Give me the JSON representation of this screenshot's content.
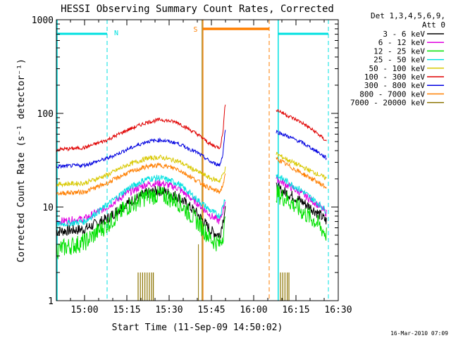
{
  "chart_data": {
    "type": "line",
    "title": "HESSI Observing Summary Count Rates, Corrected",
    "xlabel": "Start Time (11-Sep-09 14:50:02)",
    "ylabel": "Corrected Count Rate (s⁻¹ detector⁻¹)",
    "yscale": "log",
    "ylim": [
      1,
      1000
    ],
    "xlim": [
      "14:50",
      "16:30"
    ],
    "x_ticks": [
      "15:00",
      "15:15",
      "15:30",
      "15:45",
      "16:00",
      "16:15",
      "16:30"
    ],
    "y_ticks": [
      "1",
      "10",
      "100",
      "1000"
    ],
    "grid": false,
    "legend_position": "right",
    "legend_header": [
      "Det 1,3,4,5,6,9,",
      "Att 0"
    ],
    "footer_date": "16-Mar-2010 07:09",
    "x_units": "minutes after 14:50",
    "series": [
      {
        "name": "3 - 6 keV",
        "color": "#000000",
        "points": [
          [
            0,
            5.5
          ],
          [
            10,
            5.8
          ],
          [
            18,
            7.5
          ],
          [
            25,
            11
          ],
          [
            32,
            14
          ],
          [
            37,
            15
          ],
          [
            43,
            13
          ],
          [
            50,
            8.5
          ],
          [
            55,
            5.5
          ],
          [
            58,
            5
          ],
          [
            59,
            7
          ],
          [
            60,
            10
          ]
        ],
        "points2": [
          [
            78,
            16
          ],
          [
            82,
            14
          ],
          [
            87,
            11.5
          ],
          [
            92,
            9
          ],
          [
            96,
            7
          ]
        ]
      },
      {
        "name": "6 - 12 keV",
        "color": "#e000e0",
        "points": [
          [
            0,
            7
          ],
          [
            10,
            7.5
          ],
          [
            18,
            10
          ],
          [
            25,
            14
          ],
          [
            32,
            17.5
          ],
          [
            37,
            18
          ],
          [
            43,
            16
          ],
          [
            50,
            11
          ],
          [
            55,
            8
          ],
          [
            58,
            7
          ],
          [
            59,
            9
          ],
          [
            60,
            12
          ]
        ],
        "points2": [
          [
            78,
            20
          ],
          [
            82,
            17
          ],
          [
            87,
            14
          ],
          [
            92,
            11
          ],
          [
            96,
            8.5
          ]
        ]
      },
      {
        "name": "12 - 25 keV",
        "color": "#00e000",
        "points": [
          [
            0,
            3.5
          ],
          [
            10,
            4.2
          ],
          [
            18,
            6.5
          ],
          [
            25,
            10
          ],
          [
            32,
            13
          ],
          [
            37,
            13.5
          ],
          [
            43,
            11.5
          ],
          [
            50,
            7
          ],
          [
            55,
            4.5
          ],
          [
            58,
            4
          ],
          [
            59,
            5
          ],
          [
            60,
            7
          ]
        ],
        "points2": [
          [
            78,
            14
          ],
          [
            82,
            12
          ],
          [
            87,
            9
          ],
          [
            92,
            7
          ],
          [
            96,
            5
          ]
        ]
      },
      {
        "name": "25 - 50 keV",
        "color": "#00e0e0",
        "points": [
          [
            0,
            6.5
          ],
          [
            10,
            7
          ],
          [
            18,
            10.5
          ],
          [
            25,
            15.5
          ],
          [
            32,
            20
          ],
          [
            37,
            20.5
          ],
          [
            43,
            18
          ],
          [
            50,
            12
          ],
          [
            55,
            9
          ],
          [
            58,
            8
          ],
          [
            59,
            10
          ],
          [
            60,
            13
          ]
        ],
        "points2": [
          [
            78,
            22
          ],
          [
            82,
            18.5
          ],
          [
            87,
            15
          ],
          [
            92,
            11.5
          ],
          [
            96,
            9
          ]
        ]
      },
      {
        "name": "50 - 100 keV",
        "color": "#d8c800",
        "points": [
          [
            0,
            17.5
          ],
          [
            10,
            18
          ],
          [
            18,
            22
          ],
          [
            25,
            28
          ],
          [
            32,
            33
          ],
          [
            37,
            34
          ],
          [
            43,
            31
          ],
          [
            50,
            24
          ],
          [
            55,
            20
          ],
          [
            58,
            19
          ],
          [
            59,
            22
          ],
          [
            60,
            26
          ]
        ],
        "points2": [
          [
            78,
            37
          ],
          [
            82,
            32
          ],
          [
            87,
            27
          ],
          [
            92,
            23
          ],
          [
            96,
            20
          ]
        ]
      },
      {
        "name": "100 - 300 keV",
        "color": "#e00000",
        "points": [
          [
            0,
            41
          ],
          [
            10,
            43
          ],
          [
            18,
            52
          ],
          [
            25,
            66
          ],
          [
            32,
            80
          ],
          [
            37,
            86
          ],
          [
            43,
            80
          ],
          [
            50,
            60
          ],
          [
            55,
            46
          ],
          [
            58,
            43
          ],
          [
            59,
            60
          ],
          [
            60,
            135
          ]
        ],
        "points2": [
          [
            78,
            110
          ],
          [
            82,
            95
          ],
          [
            87,
            80
          ],
          [
            92,
            63
          ],
          [
            96,
            50
          ]
        ]
      },
      {
        "name": "300 - 800 keV",
        "color": "#0000e0",
        "points": [
          [
            0,
            27
          ],
          [
            10,
            28
          ],
          [
            18,
            33
          ],
          [
            25,
            41
          ],
          [
            32,
            50
          ],
          [
            37,
            52
          ],
          [
            43,
            48
          ],
          [
            50,
            38
          ],
          [
            55,
            30
          ],
          [
            58,
            28
          ],
          [
            59,
            36
          ],
          [
            60,
            70
          ]
        ],
        "points2": [
          [
            78,
            64
          ],
          [
            82,
            57
          ],
          [
            87,
            49
          ],
          [
            92,
            40
          ],
          [
            96,
            33
          ]
        ]
      },
      {
        "name": "800 - 7000 keV",
        "color": "#ff7f00",
        "points": [
          [
            0,
            14
          ],
          [
            10,
            14.5
          ],
          [
            18,
            18
          ],
          [
            25,
            23
          ],
          [
            32,
            27
          ],
          [
            37,
            28
          ],
          [
            43,
            25.5
          ],
          [
            50,
            19
          ],
          [
            55,
            15.5
          ],
          [
            58,
            14.5
          ],
          [
            59,
            17
          ],
          [
            60,
            22
          ]
        ],
        "points2": [
          [
            78,
            33
          ],
          [
            82,
            28
          ],
          [
            87,
            23
          ],
          [
            92,
            19
          ],
          [
            96,
            16
          ]
        ]
      },
      {
        "name": "7000 - 20000 keV",
        "color": "#8b7300",
        "points": [],
        "points2": []
      }
    ],
    "annotations": [
      {
        "label": "N",
        "color": "#00e0e0"
      },
      {
        "label": "S",
        "color": "#ff7f00"
      }
    ]
  }
}
